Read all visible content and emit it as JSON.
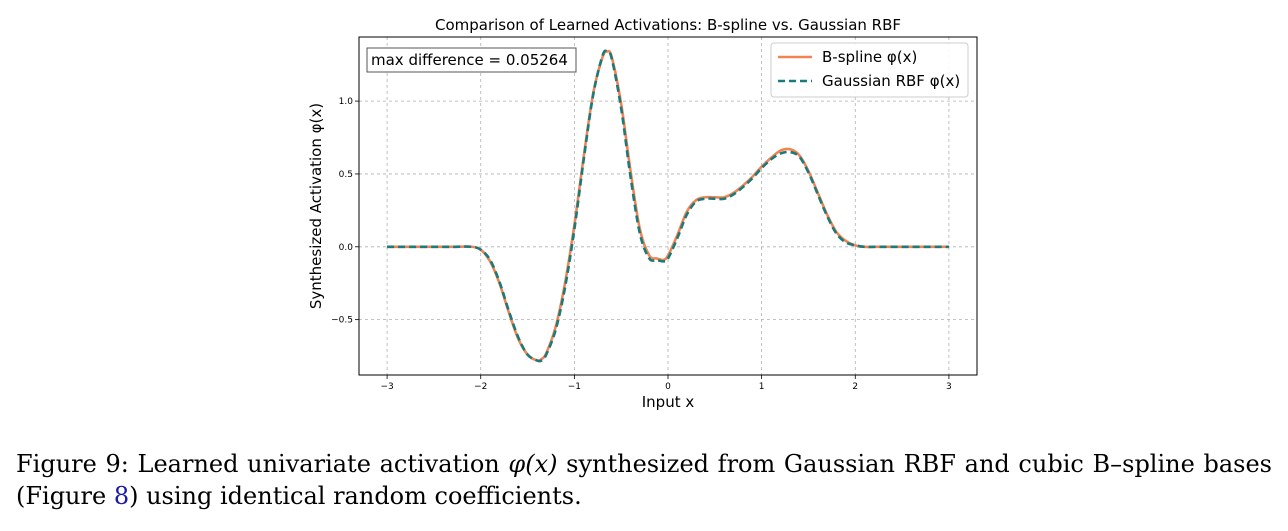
{
  "chart_data": {
    "type": "line",
    "title": "Comparison of Learned Activations: B-spline vs. Gaussian RBF",
    "xlabel": "Input x",
    "ylabel": "Synthesized Activation φ(x)",
    "xlim": [
      -3.3,
      3.3
    ],
    "ylim": [
      -0.88,
      1.44
    ],
    "xticks": [
      -3,
      -2,
      -1,
      0,
      1,
      2,
      3
    ],
    "xtick_labels": [
      "−3",
      "−2",
      "−1",
      "0",
      "1",
      "2",
      "3"
    ],
    "yticks": [
      -0.5,
      0.0,
      0.5,
      1.0
    ],
    "ytick_labels": [
      "−0.5",
      "0.0",
      "0.5",
      "1.0"
    ],
    "grid": true,
    "legend_position": "upper right",
    "annotation": "max difference = 0.05264",
    "x": [
      -3.0,
      -2.6,
      -2.3,
      -2.1,
      -2.0,
      -1.9,
      -1.8,
      -1.7,
      -1.6,
      -1.5,
      -1.4,
      -1.35,
      -1.3,
      -1.2,
      -1.1,
      -1.0,
      -0.9,
      -0.8,
      -0.7,
      -0.65,
      -0.6,
      -0.5,
      -0.4,
      -0.3,
      -0.2,
      -0.12,
      -0.05,
      0.0,
      0.1,
      0.2,
      0.3,
      0.4,
      0.5,
      0.6,
      0.7,
      0.8,
      0.9,
      1.0,
      1.1,
      1.2,
      1.3,
      1.4,
      1.5,
      1.6,
      1.7,
      1.8,
      1.9,
      2.0,
      2.1,
      2.3,
      2.6,
      3.0
    ],
    "series": [
      {
        "name": "B-spline φ(x)",
        "color": "#f28454",
        "style": "solid",
        "values": [
          0.0,
          0.0,
          0.0,
          0.0,
          -0.02,
          -0.1,
          -0.25,
          -0.45,
          -0.63,
          -0.74,
          -0.78,
          -0.77,
          -0.73,
          -0.55,
          -0.25,
          0.15,
          0.62,
          1.05,
          1.3,
          1.34,
          1.3,
          0.98,
          0.52,
          0.12,
          -0.06,
          -0.08,
          -0.09,
          -0.06,
          0.08,
          0.24,
          0.32,
          0.34,
          0.34,
          0.34,
          0.37,
          0.42,
          0.48,
          0.55,
          0.61,
          0.66,
          0.67,
          0.63,
          0.52,
          0.37,
          0.22,
          0.1,
          0.04,
          0.01,
          0.0,
          0.0,
          0.0,
          0.0
        ]
      },
      {
        "name": "Gaussian RBF φ(x)",
        "color": "#1b7a7a",
        "style": "dashed",
        "values": [
          0.0,
          0.0,
          0.0,
          0.0,
          -0.02,
          -0.09,
          -0.24,
          -0.44,
          -0.62,
          -0.74,
          -0.78,
          -0.78,
          -0.74,
          -0.57,
          -0.28,
          0.12,
          0.6,
          1.04,
          1.31,
          1.34,
          1.29,
          0.95,
          0.48,
          0.09,
          -0.08,
          -0.09,
          -0.1,
          -0.08,
          0.06,
          0.22,
          0.31,
          0.33,
          0.33,
          0.33,
          0.36,
          0.41,
          0.47,
          0.54,
          0.6,
          0.64,
          0.65,
          0.62,
          0.51,
          0.36,
          0.21,
          0.09,
          0.03,
          0.01,
          0.0,
          0.0,
          0.0,
          0.0
        ]
      }
    ]
  },
  "caption": {
    "prefix": "Figure 9:  Learned univariate activation ",
    "math": "φ(x)",
    "middle": " synthesized from Gaussian RBF and cubic B–spline bases (Figure ",
    "ref": "8",
    "suffix": ") using identical random coefficients."
  }
}
